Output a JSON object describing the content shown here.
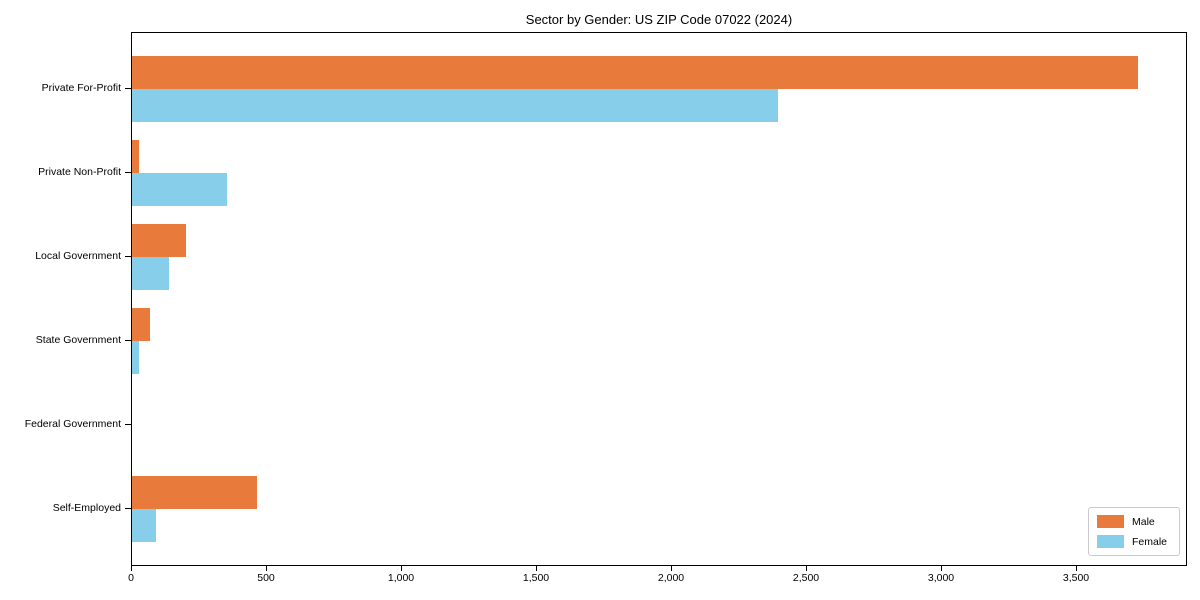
{
  "chart_data": {
    "type": "bar",
    "orientation": "horizontal",
    "title": "Sector by Gender: US ZIP Code 07022 (2024)",
    "categories": [
      "Private For-Profit",
      "Private Non-Profit",
      "Local Government",
      "State Government",
      "Federal Government",
      "Self-Employed"
    ],
    "series": [
      {
        "name": "Male",
        "color": "#e87a3c",
        "values": [
          3725,
          26,
          200,
          67,
          0,
          463
        ]
      },
      {
        "name": "Female",
        "color": "#87ceeb",
        "values": [
          2394,
          352,
          137,
          25,
          0,
          89
        ]
      }
    ],
    "xlabel": "",
    "ylabel": "",
    "xlim": [
      0,
      3911
    ],
    "xticks": [
      0,
      500,
      1000,
      1500,
      2000,
      2500,
      3000,
      3500
    ],
    "xtick_labels": [
      "0",
      "500",
      "1,000",
      "1,500",
      "2,000",
      "2,500",
      "3,000",
      "3,500"
    ],
    "grid": false,
    "legend": {
      "position": "lower right",
      "entries": [
        "Male",
        "Female"
      ]
    },
    "plot_border": "#000000",
    "background": "#ffffff"
  }
}
